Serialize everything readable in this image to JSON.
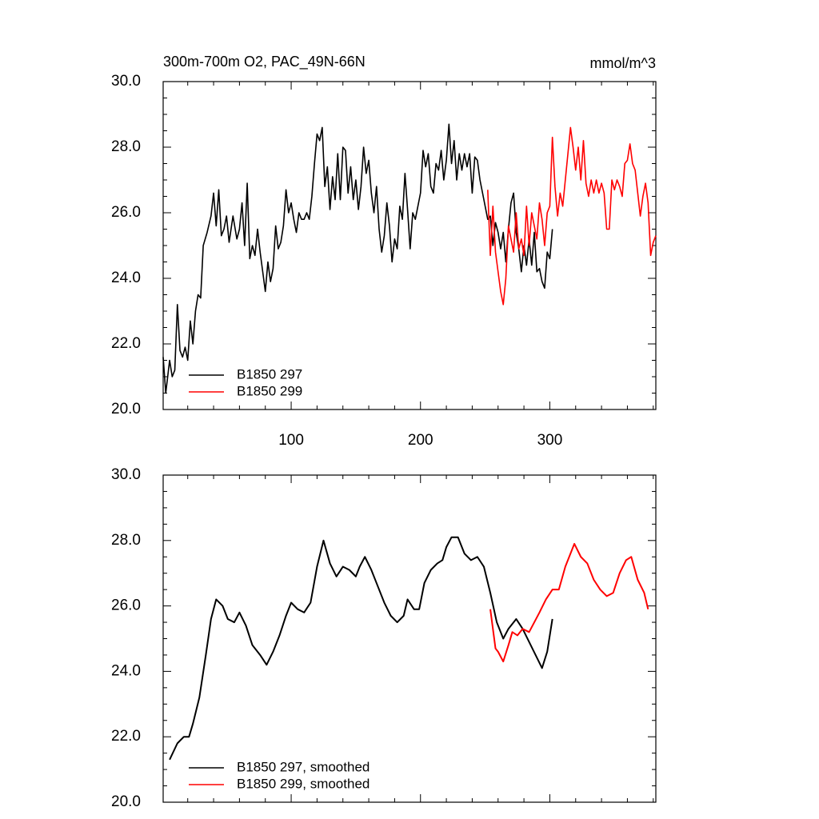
{
  "chart_data": [
    {
      "type": "line",
      "title": "300m-700m O2, PAC_49N-66N",
      "units": "mmol/m^3",
      "xlim": [
        1,
        382
      ],
      "xticks": [
        100,
        200,
        300
      ],
      "xtick_labels": true,
      "ylim": [
        20,
        30
      ],
      "yticks": [
        {
          "value": 20,
          "label": "20.0"
        },
        {
          "value": 22,
          "label": "22.0"
        },
        {
          "value": 24,
          "label": "24.0"
        },
        {
          "value": 26,
          "label": "26.0"
        },
        {
          "value": 28,
          "label": "28.0"
        },
        {
          "value": 30,
          "label": "30.0"
        }
      ],
      "legend": "lower left",
      "series": [
        {
          "name": "B1850 297",
          "color": "#000000",
          "x": [
            1,
            3,
            6,
            8,
            10,
            12,
            14,
            16,
            18,
            20,
            22,
            24,
            26,
            28,
            30,
            32,
            35,
            38,
            40,
            42,
            44,
            46,
            48,
            50,
            52,
            55,
            58,
            60,
            62,
            64,
            66,
            68,
            70,
            72,
            74,
            76,
            78,
            80,
            82,
            84,
            86,
            88,
            90,
            92,
            94,
            96,
            98,
            100,
            102,
            104,
            106,
            108,
            110,
            112,
            114,
            116,
            118,
            120,
            122,
            124,
            126,
            128,
            130,
            132,
            134,
            136,
            138,
            140,
            142,
            144,
            146,
            148,
            150,
            152,
            154,
            156,
            158,
            160,
            162,
            164,
            166,
            168,
            170,
            172,
            174,
            176,
            178,
            180,
            182,
            184,
            186,
            188,
            190,
            192,
            194,
            196,
            198,
            200,
            202,
            204,
            206,
            208,
            210,
            212,
            214,
            216,
            218,
            220,
            222,
            224,
            226,
            228,
            230,
            232,
            234,
            236,
            238,
            240,
            242,
            244,
            246,
            248,
            250,
            252,
            254,
            256,
            258,
            260,
            262,
            264,
            266,
            268,
            270,
            272,
            274,
            276,
            278,
            280,
            282,
            284,
            286,
            288,
            290,
            292,
            294,
            296,
            298,
            300,
            302
          ],
          "values": [
            21.6,
            20.5,
            21.5,
            21.0,
            21.2,
            23.2,
            21.8,
            21.6,
            21.9,
            21.5,
            22.7,
            22.0,
            23.0,
            23.5,
            23.4,
            25.0,
            25.4,
            25.9,
            26.6,
            25.6,
            26.7,
            25.3,
            25.5,
            25.9,
            25.1,
            25.9,
            25.2,
            25.5,
            26.3,
            25.0,
            26.9,
            24.6,
            25.0,
            24.7,
            25.5,
            24.8,
            24.2,
            23.6,
            24.5,
            23.9,
            24.3,
            25.6,
            24.9,
            25.1,
            25.6,
            26.7,
            26.0,
            26.3,
            25.8,
            25.4,
            26.0,
            25.8,
            25.8,
            26.0,
            25.8,
            26.5,
            27.5,
            28.4,
            28.2,
            28.6,
            26.8,
            27.4,
            26.1,
            27.1,
            26.4,
            27.8,
            26.4,
            28.0,
            27.9,
            26.6,
            27.4,
            26.4,
            27.0,
            26.1,
            26.8,
            28.0,
            27.2,
            27.6,
            26.6,
            26.0,
            26.8,
            25.5,
            24.8,
            25.3,
            26.3,
            25.6,
            24.5,
            25.2,
            24.9,
            26.2,
            25.8,
            27.2,
            26.1,
            24.9,
            26.0,
            25.8,
            26.2,
            26.6,
            27.9,
            27.4,
            27.8,
            26.8,
            26.6,
            27.5,
            27.3,
            27.9,
            27.0,
            27.6,
            28.7,
            27.5,
            28.2,
            27.0,
            27.8,
            27.3,
            27.8,
            27.4,
            27.8,
            26.6,
            27.7,
            27.6,
            27.0,
            26.6,
            26.2,
            25.8,
            25.9,
            25.0,
            25.7,
            25.4,
            24.9,
            25.4,
            24.5,
            25.5,
            26.3,
            26.6,
            25.4,
            24.9,
            24.2,
            25.0,
            24.4,
            25.2,
            24.4,
            25.4,
            24.2,
            24.3,
            23.9,
            23.7,
            24.8,
            24.6,
            25.5
          ]
        },
        {
          "name": "B1850 299",
          "color": "#ff0000",
          "x": [
            252,
            254,
            256,
            258,
            260,
            262,
            264,
            266,
            268,
            270,
            272,
            274,
            276,
            278,
            280,
            282,
            284,
            286,
            288,
            290,
            292,
            294,
            296,
            298,
            300,
            302,
            304,
            306,
            308,
            310,
            312,
            314,
            316,
            318,
            320,
            322,
            324,
            326,
            328,
            330,
            332,
            334,
            336,
            338,
            340,
            342,
            344,
            346,
            348,
            350,
            352,
            354,
            356,
            358,
            360,
            362,
            364,
            366,
            368,
            370,
            372,
            374,
            376,
            378,
            380,
            382
          ],
          "values": [
            26.7,
            24.7,
            26.2,
            24.8,
            24.2,
            23.6,
            23.2,
            24.0,
            25.6,
            25.2,
            24.8,
            26.0,
            24.9,
            25.2,
            24.7,
            26.2,
            25.0,
            26.0,
            25.6,
            25.2,
            26.3,
            25.8,
            25.0,
            26.0,
            26.2,
            28.3,
            26.8,
            25.9,
            26.6,
            26.2,
            27.0,
            27.8,
            28.6,
            28.0,
            27.3,
            28.0,
            27.0,
            28.2,
            26.9,
            26.5,
            27.0,
            26.6,
            27.0,
            26.6,
            26.9,
            26.6,
            25.5,
            25.5,
            27.0,
            26.7,
            27.0,
            26.8,
            26.5,
            27.5,
            27.6,
            28.1,
            27.5,
            27.3,
            26.6,
            25.9,
            26.5,
            26.9,
            26.3,
            24.7,
            25.1,
            25.3
          ]
        }
      ]
    },
    {
      "type": "line",
      "xlim": [
        1,
        382
      ],
      "xticks": [
        100,
        200,
        300
      ],
      "xtick_labels": false,
      "ylim": [
        20,
        30
      ],
      "yticks": [
        {
          "value": 20,
          "label": "20.0"
        },
        {
          "value": 22,
          "label": "22.0"
        },
        {
          "value": 24,
          "label": "24.0"
        },
        {
          "value": 26,
          "label": "26.0"
        },
        {
          "value": 28,
          "label": "28.0"
        },
        {
          "value": 30,
          "label": "30.0"
        }
      ],
      "legend": "lower left",
      "series": [
        {
          "name": "B1850 297, smoothed",
          "color": "#000000",
          "x": [
            6,
            12,
            17,
            21,
            24,
            29,
            34,
            38,
            42,
            47,
            51,
            56,
            60,
            65,
            70,
            76,
            81,
            86,
            91,
            96,
            100,
            105,
            110,
            115,
            120,
            125,
            130,
            135,
            140,
            145,
            150,
            153,
            157,
            162,
            167,
            172,
            177,
            182,
            187,
            190,
            195,
            199,
            203,
            208,
            213,
            217,
            220,
            224,
            229,
            234,
            239,
            244,
            249,
            254,
            259,
            264,
            268,
            274,
            279,
            284,
            289,
            294,
            298,
            302
          ],
          "values": [
            21.3,
            21.8,
            22.0,
            22.0,
            22.4,
            23.2,
            24.5,
            25.6,
            26.2,
            26.0,
            25.6,
            25.5,
            25.8,
            25.4,
            24.8,
            24.5,
            24.2,
            24.6,
            25.1,
            25.7,
            26.1,
            25.9,
            25.8,
            26.1,
            27.2,
            28.0,
            27.3,
            26.9,
            27.2,
            27.1,
            26.9,
            27.2,
            27.5,
            27.1,
            26.6,
            26.1,
            25.7,
            25.5,
            25.7,
            26.2,
            25.9,
            25.9,
            26.7,
            27.1,
            27.3,
            27.4,
            27.8,
            28.1,
            28.1,
            27.6,
            27.4,
            27.5,
            27.2,
            26.4,
            25.5,
            25.0,
            25.3,
            25.6,
            25.3,
            24.9,
            24.5,
            24.1,
            24.6,
            25.6
          ]
        },
        {
          "name": "B1850 299, smoothed",
          "color": "#ff0000",
          "x": [
            254,
            258,
            260,
            264,
            268,
            271,
            275,
            279,
            284,
            288,
            292,
            297,
            302,
            307,
            312,
            316,
            319,
            324,
            329,
            334,
            339,
            344,
            349,
            354,
            359,
            363,
            368,
            373,
            376
          ],
          "values": [
            25.9,
            24.7,
            24.6,
            24.3,
            24.8,
            25.2,
            25.1,
            25.3,
            25.2,
            25.5,
            25.8,
            26.2,
            26.5,
            26.5,
            27.2,
            27.6,
            27.9,
            27.5,
            27.3,
            26.8,
            26.5,
            26.3,
            26.4,
            27.0,
            27.4,
            27.5,
            26.8,
            26.4,
            25.9
          ]
        }
      ]
    }
  ]
}
